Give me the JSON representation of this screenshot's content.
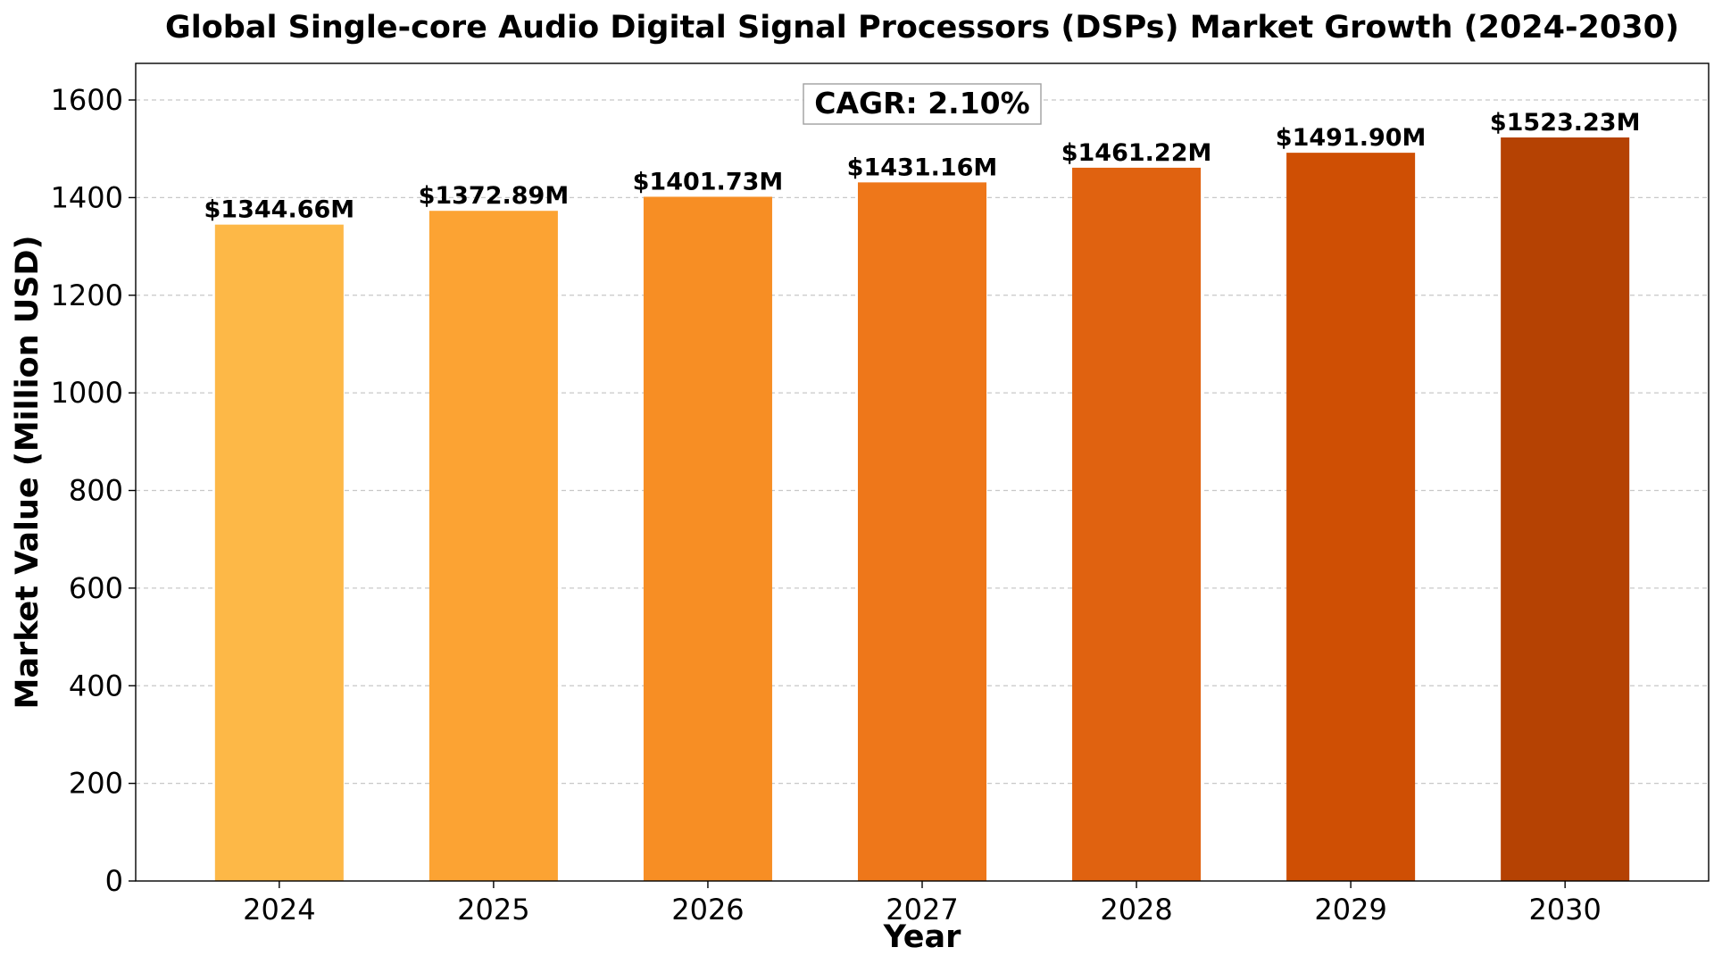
{
  "chart_data": {
    "type": "bar",
    "title": "Global Single-core Audio Digital Signal Processors (DSPs) Market Growth (2024-2030)",
    "xlabel": "Year",
    "ylabel": "Market Value (Million USD)",
    "categories": [
      "2024",
      "2025",
      "2026",
      "2027",
      "2028",
      "2029",
      "2030"
    ],
    "values": [
      1344.66,
      1372.89,
      1401.73,
      1431.16,
      1461.22,
      1491.9,
      1523.23
    ],
    "data_labels": [
      "$1344.66M",
      "$1372.89M",
      "$1401.73M",
      "$1431.16M",
      "$1461.22M",
      "$1491.90M",
      "$1523.23M"
    ],
    "colors": [
      "#FDB847",
      "#FCA333",
      "#F78E24",
      "#EE771A",
      "#E06210",
      "#CF4F04",
      "#B54203"
    ],
    "ylim": [
      0,
      1675
    ],
    "yticks": [
      0,
      200,
      400,
      600,
      800,
      1000,
      1200,
      1400,
      1600
    ],
    "grid": true,
    "annotation": "CAGR: 2.10%"
  }
}
